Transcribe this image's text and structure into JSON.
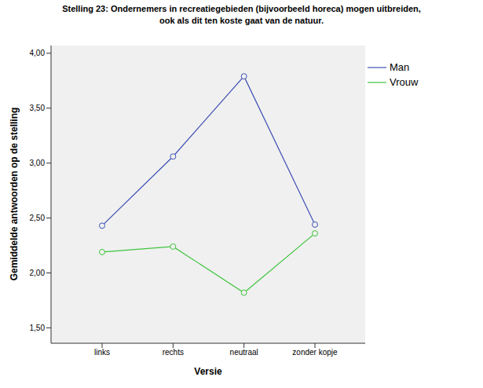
{
  "chart_data": {
    "type": "line",
    "title": [
      "Stelling 23: Ondernemers in recreatiegebieden (bijvoorbeeld horeca) mogen uitbreiden,",
      "ook als dit ten koste gaat van de natuur."
    ],
    "x_label": "Versie",
    "y_label": "Gemiddelde antwoorden op de stelling",
    "categories": [
      "links",
      "rechts",
      "neutraal",
      "zonder kopje"
    ],
    "series": [
      {
        "name": "Man",
        "color": "#3e4fb5",
        "marker": "circle",
        "values": [
          2.43,
          3.06,
          3.79,
          2.44
        ]
      },
      {
        "name": "Vrouw",
        "color": "#3cc43c",
        "marker": "circle",
        "values": [
          2.19,
          2.24,
          1.82,
          2.36
        ]
      }
    ],
    "ylim": [
      1.36,
      4.07
    ],
    "yticks": [
      {
        "value": 1.5,
        "label": "1,50"
      },
      {
        "value": 2,
        "label": "2,00"
      },
      {
        "value": 2.5,
        "label": "2,50"
      },
      {
        "value": 3,
        "label": "3,00"
      },
      {
        "value": 3.5,
        "label": "3,50"
      },
      {
        "value": 4,
        "label": "4,00"
      }
    ],
    "grid": false,
    "legend": "right"
  }
}
